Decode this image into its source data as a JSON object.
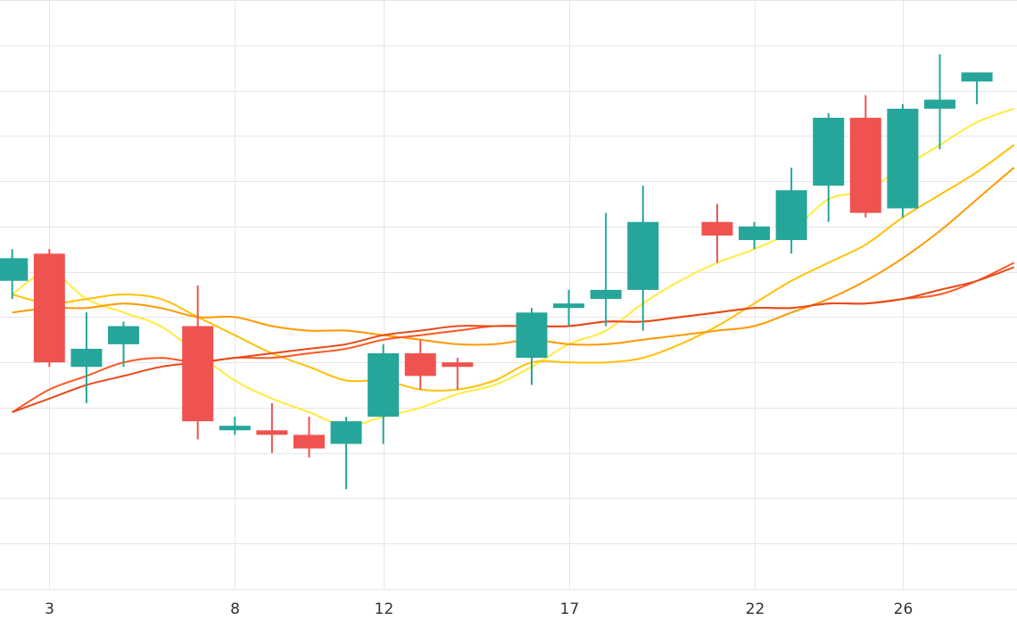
{
  "chart_data": {
    "type": "candlestick",
    "x_ticks": [
      {
        "x": 3,
        "label": "3"
      },
      {
        "x": 8,
        "label": "8"
      },
      {
        "x": 12,
        "label": "12"
      },
      {
        "x": 17,
        "label": "17"
      },
      {
        "x": 22,
        "label": "22"
      },
      {
        "x": 26,
        "label": "26"
      }
    ],
    "xlim": [
      1.67,
      29.08
    ],
    "ylim": [
      0,
      13
    ],
    "grid": true,
    "colors": {
      "up": "#26a69a",
      "down": "#ef5350",
      "grid": "#e6e6e6",
      "axis_text": "#333333"
    },
    "candles": [
      {
        "x": 2,
        "open": 6.8,
        "high": 7.5,
        "low": 6.4,
        "close": 7.3
      },
      {
        "x": 3,
        "open": 7.4,
        "high": 7.5,
        "low": 4.9,
        "close": 5.0
      },
      {
        "x": 4,
        "open": 4.9,
        "high": 6.1,
        "low": 4.1,
        "close": 5.3
      },
      {
        "x": 5,
        "open": 5.4,
        "high": 5.9,
        "low": 4.9,
        "close": 5.8
      },
      {
        "x": 7,
        "open": 5.8,
        "high": 6.7,
        "low": 3.3,
        "close": 3.7
      },
      {
        "x": 8,
        "open": 3.5,
        "high": 3.8,
        "low": 3.4,
        "close": 3.6
      },
      {
        "x": 9,
        "open": 3.5,
        "high": 4.1,
        "low": 3.0,
        "close": 3.4
      },
      {
        "x": 10,
        "open": 3.4,
        "high": 3.8,
        "low": 2.9,
        "close": 3.1
      },
      {
        "x": 11,
        "open": 3.2,
        "high": 3.8,
        "low": 2.2,
        "close": 3.7
      },
      {
        "x": 12,
        "open": 3.8,
        "high": 5.4,
        "low": 3.2,
        "close": 5.2
      },
      {
        "x": 13,
        "open": 5.2,
        "high": 5.5,
        "low": 4.4,
        "close": 4.7
      },
      {
        "x": 14,
        "open": 5.0,
        "high": 5.1,
        "low": 4.4,
        "close": 4.9
      },
      {
        "x": 16,
        "open": 5.1,
        "high": 6.2,
        "low": 4.5,
        "close": 6.1
      },
      {
        "x": 17,
        "open": 6.2,
        "high": 6.6,
        "low": 5.8,
        "close": 6.3
      },
      {
        "x": 18,
        "open": 6.4,
        "high": 8.3,
        "low": 5.8,
        "close": 6.6
      },
      {
        "x": 19,
        "open": 6.6,
        "high": 8.9,
        "low": 5.7,
        "close": 8.1
      },
      {
        "x": 21,
        "open": 8.1,
        "high": 8.5,
        "low": 7.2,
        "close": 7.8
      },
      {
        "x": 22,
        "open": 7.7,
        "high": 8.1,
        "low": 7.5,
        "close": 8.0
      },
      {
        "x": 23,
        "open": 7.7,
        "high": 9.3,
        "low": 7.4,
        "close": 8.8
      },
      {
        "x": 24,
        "open": 8.9,
        "high": 10.5,
        "low": 8.1,
        "close": 10.4
      },
      {
        "x": 25,
        "open": 10.4,
        "high": 10.9,
        "low": 8.2,
        "close": 8.3
      },
      {
        "x": 26,
        "open": 8.4,
        "high": 10.7,
        "low": 8.2,
        "close": 10.6
      },
      {
        "x": 27,
        "open": 10.6,
        "high": 11.8,
        "low": 9.7,
        "close": 10.8
      },
      {
        "x": 28,
        "open": 11.2,
        "high": 11.4,
        "low": 10.7,
        "close": 11.4
      }
    ],
    "lines": [
      {
        "color": "#ffeb3b",
        "x": [
          2,
          3,
          4,
          5,
          6,
          7,
          8,
          9,
          10,
          11,
          12,
          13,
          14,
          15,
          16,
          17,
          18,
          19,
          20,
          21,
          22,
          23,
          24,
          25,
          26,
          27,
          28,
          29
        ],
        "values": [
          6.5,
          7.0,
          6.4,
          6.1,
          5.8,
          5.2,
          4.6,
          4.2,
          3.9,
          3.6,
          3.8,
          4.0,
          4.3,
          4.5,
          4.9,
          5.4,
          5.7,
          6.3,
          6.8,
          7.2,
          7.5,
          7.9,
          8.6,
          8.8,
          9.3,
          9.8,
          10.3,
          10.6
        ]
      },
      {
        "color": "#ffc107",
        "x": [
          2,
          3,
          4,
          5,
          6,
          7,
          8,
          9,
          10,
          11,
          12,
          13,
          14,
          15,
          16,
          17,
          18,
          19,
          20,
          21,
          22,
          23,
          24,
          25,
          26,
          27,
          28,
          29
        ],
        "values": [
          6.5,
          6.3,
          6.4,
          6.5,
          6.4,
          6.0,
          5.6,
          5.2,
          4.9,
          4.6,
          4.6,
          4.4,
          4.4,
          4.6,
          5.0,
          5.0,
          5.0,
          5.1,
          5.4,
          5.8,
          6.3,
          6.8,
          7.2,
          7.6,
          8.2,
          8.7,
          9.2,
          9.8
        ]
      },
      {
        "color": "#ff9800",
        "x": [
          2,
          3,
          4,
          5,
          6,
          7,
          8,
          9,
          10,
          11,
          12,
          13,
          14,
          15,
          16,
          17,
          18,
          19,
          20,
          21,
          22,
          23,
          24,
          25,
          26,
          27,
          28,
          29
        ],
        "values": [
          6.1,
          6.2,
          6.2,
          6.3,
          6.2,
          6.0,
          6.0,
          5.8,
          5.7,
          5.7,
          5.6,
          5.5,
          5.4,
          5.4,
          5.5,
          5.4,
          5.4,
          5.5,
          5.6,
          5.7,
          5.8,
          6.1,
          6.4,
          6.8,
          7.3,
          7.9,
          8.6,
          9.3
        ]
      },
      {
        "color": "#ff5722",
        "x": [
          2,
          3,
          4,
          5,
          6,
          7,
          8,
          9,
          10,
          11,
          12,
          13,
          14,
          15,
          16,
          17,
          18,
          19,
          20,
          21,
          22,
          23,
          24,
          25,
          26,
          27,
          28,
          29
        ],
        "values": [
          3.9,
          4.4,
          4.7,
          5.0,
          5.1,
          5.0,
          5.1,
          5.1,
          5.2,
          5.3,
          5.5,
          5.6,
          5.7,
          5.8,
          5.8,
          5.8,
          5.9,
          5.9,
          6.0,
          6.1,
          6.2,
          6.2,
          6.3,
          6.3,
          6.4,
          6.5,
          6.8,
          7.2
        ]
      },
      {
        "color": "#e64a19",
        "x": [
          2,
          3,
          4,
          5,
          6,
          7,
          8,
          9,
          10,
          11,
          12,
          13,
          14,
          15,
          16,
          17,
          18,
          19,
          20,
          21,
          22,
          23,
          24,
          25,
          26,
          27,
          28,
          29
        ],
        "values": [
          3.9,
          4.2,
          4.5,
          4.7,
          4.9,
          5.0,
          5.1,
          5.2,
          5.3,
          5.4,
          5.6,
          5.7,
          5.8,
          5.8,
          5.8,
          5.8,
          5.9,
          5.9,
          6.0,
          6.1,
          6.2,
          6.2,
          6.3,
          6.3,
          6.4,
          6.6,
          6.8,
          7.1
        ]
      }
    ]
  }
}
